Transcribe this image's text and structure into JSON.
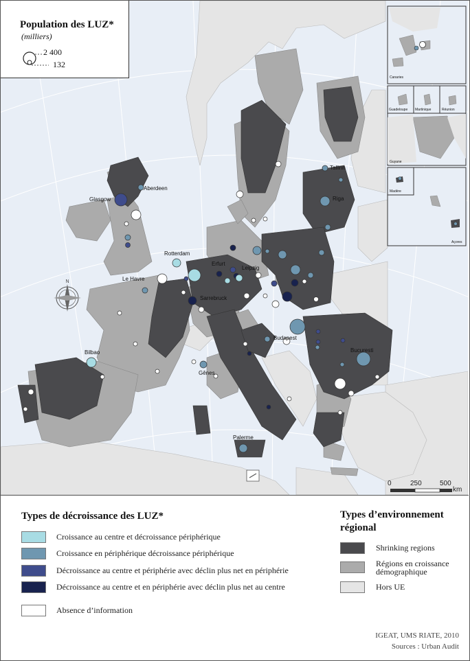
{
  "title": {
    "main": "Population des LUZ*",
    "unit": "(milliers)",
    "size_large": "2 400",
    "size_small": "132"
  },
  "cities": {
    "aberdeen": "Aberdeen",
    "glasgow": "Glasgow",
    "rotterdam": "Rotterdam",
    "lehavre": "Le Havre",
    "erfurt": "Erfurt",
    "leipzig": "Leipzig",
    "sarrebruck": "Sarrebruck",
    "tallinn": "Tallinn",
    "riga": "Riga",
    "budapest": "Budapest",
    "bucuresti": "Bucuresti",
    "bilbao": "Bilbao",
    "genes": "Gênes",
    "palerme": "Palerme"
  },
  "insets": {
    "canaries": "Canaries",
    "guadeloupe": "Guadeloupe",
    "martinique": "Martinique",
    "reunion": "Réunion",
    "guyane": "Guyane",
    "madere": "Madère",
    "acores": "Açores"
  },
  "scale": {
    "v0": "0",
    "v1": "250",
    "v2": "500",
    "unit": "km"
  },
  "legend_luz": {
    "title": "Types de décroissance des LUZ*",
    "items": [
      {
        "label": "Croissance au centre et décroissance périphérique",
        "color": "#a8dce4"
      },
      {
        "label": "Croissance en périphérique décroissance périphérique",
        "color": "#6f97b0"
      },
      {
        "label": "Décroissance au centre et périphérie avec déclin plus net en périphérie",
        "color": "#3f4c8c"
      },
      {
        "label": "Décroissance au centre et en périphérie avec déclin plus net au centre",
        "color": "#18224e"
      },
      {
        "label": "Absence d’information",
        "color": "#ffffff"
      }
    ]
  },
  "legend_env": {
    "title_line1": "Types d’environnement",
    "title_line2": "régional",
    "items": [
      {
        "label": "Shrinking regions",
        "color": "#4a4a4d"
      },
      {
        "label_line1": "Régions en croissance",
        "label_line2": "démographique",
        "color": "#ababab"
      },
      {
        "label": "Hors UE",
        "color": "#e5e5e5"
      }
    ]
  },
  "source": {
    "line1": "IGEAT, UMS RIATE, 2010",
    "line2": "Sources : Urban Audit"
  },
  "colors": {
    "sea": "#e8eef6",
    "non_eu": "#e5e5e5",
    "growth": "#ababab",
    "shrinking": "#4a4a4d"
  }
}
